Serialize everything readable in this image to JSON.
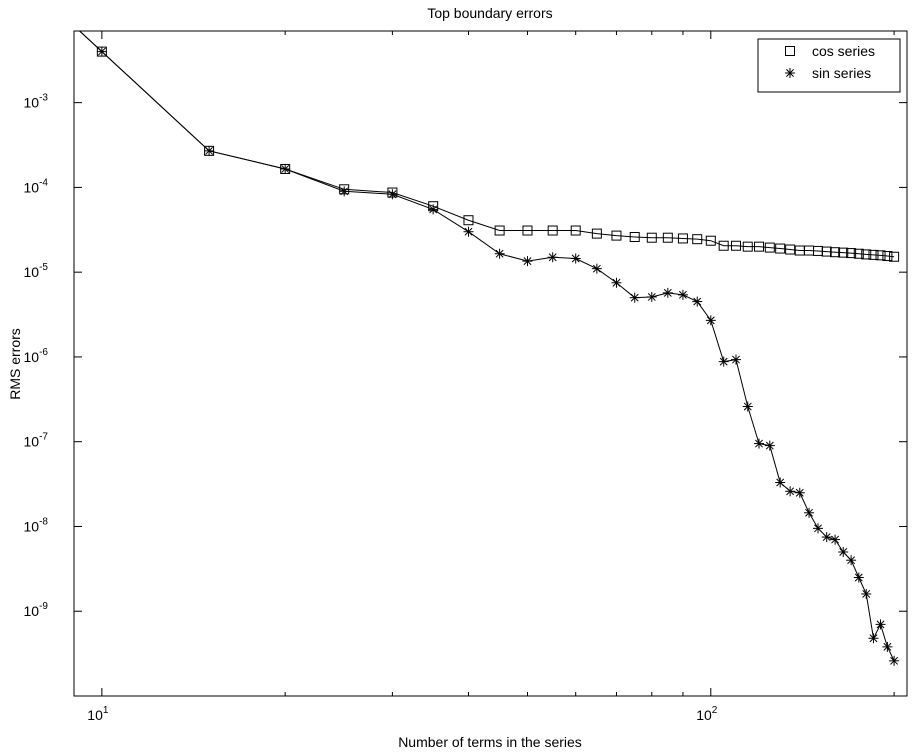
{
  "chart_data": {
    "type": "line",
    "title": "Top boundary errors",
    "xlabel": "Number of terms in the series",
    "ylabel": "RMS errors",
    "xscale": "log",
    "yscale": "log",
    "xlim": [
      9,
      210
    ],
    "ylim": [
      1e-10,
      0.007
    ],
    "grid": false,
    "legend_position": "top-right",
    "x_ticks": [
      {
        "value": 10,
        "base": "10",
        "exp": "1"
      },
      {
        "value": 100,
        "base": "10",
        "exp": "2"
      }
    ],
    "y_ticks": [
      {
        "value": 1e-09,
        "base": "10",
        "exp": "-9"
      },
      {
        "value": 1e-08,
        "base": "10",
        "exp": "-8"
      },
      {
        "value": 1e-07,
        "base": "10",
        "exp": "-7"
      },
      {
        "value": 1e-06,
        "base": "10",
        "exp": "-6"
      },
      {
        "value": 1e-05,
        "base": "10",
        "exp": "-5"
      },
      {
        "value": 0.0001,
        "base": "10",
        "exp": "-4"
      },
      {
        "value": 0.001,
        "base": "10",
        "exp": "-3"
      }
    ],
    "series": [
      {
        "name": "cos series",
        "marker": "square",
        "x": [
          10,
          15,
          20,
          25,
          30,
          35,
          40,
          45,
          50,
          55,
          60,
          65,
          70,
          75,
          80,
          85,
          90,
          95,
          100,
          105,
          110,
          115,
          120,
          125,
          130,
          135,
          140,
          145,
          150,
          155,
          160,
          165,
          170,
          175,
          180,
          185,
          190,
          195,
          200
        ],
        "y": [
          0.004,
          0.00027,
          0.000165,
          9.5e-05,
          8.7e-05,
          6e-05,
          4.1e-05,
          3.1e-05,
          3.1e-05,
          3.1e-05,
          3.1e-05,
          2.85e-05,
          2.7e-05,
          2.6e-05,
          2.55e-05,
          2.55e-05,
          2.5e-05,
          2.45e-05,
          2.35e-05,
          2.05e-05,
          2.05e-05,
          2e-05,
          2e-05,
          1.95e-05,
          1.9e-05,
          1.85e-05,
          1.8e-05,
          1.8e-05,
          1.78e-05,
          1.75e-05,
          1.72e-05,
          1.7e-05,
          1.68e-05,
          1.65e-05,
          1.62e-05,
          1.6e-05,
          1.58e-05,
          1.55e-05,
          1.52e-05
        ]
      },
      {
        "name": "sin series",
        "marker": "asterisk",
        "x": [
          10,
          15,
          20,
          25,
          30,
          35,
          40,
          45,
          50,
          55,
          60,
          65,
          70,
          75,
          80,
          85,
          90,
          95,
          100,
          105,
          110,
          115,
          120,
          125,
          130,
          135,
          140,
          145,
          150,
          155,
          160,
          165,
          170,
          175,
          180,
          185,
          190,
          195,
          200
        ],
        "y": [
          0.004,
          0.00027,
          0.000165,
          9e-05,
          8.3e-05,
          5.5e-05,
          3e-05,
          1.65e-05,
          1.35e-05,
          1.5e-05,
          1.45e-05,
          1.1e-05,
          7.5e-06,
          5e-06,
          5.1e-06,
          5.7e-06,
          5.4e-06,
          4.5e-06,
          2.7e-06,
          8.8e-07,
          9.3e-07,
          2.6e-07,
          9.5e-08,
          9e-08,
          3.3e-08,
          2.6e-08,
          2.5e-08,
          1.45e-08,
          9.5e-09,
          7.5e-09,
          7e-09,
          5e-09,
          4e-09,
          2.5e-09,
          1.6e-09,
          4.8e-10,
          7e-10,
          3.8e-10,
          2.6e-10
        ]
      }
    ]
  }
}
